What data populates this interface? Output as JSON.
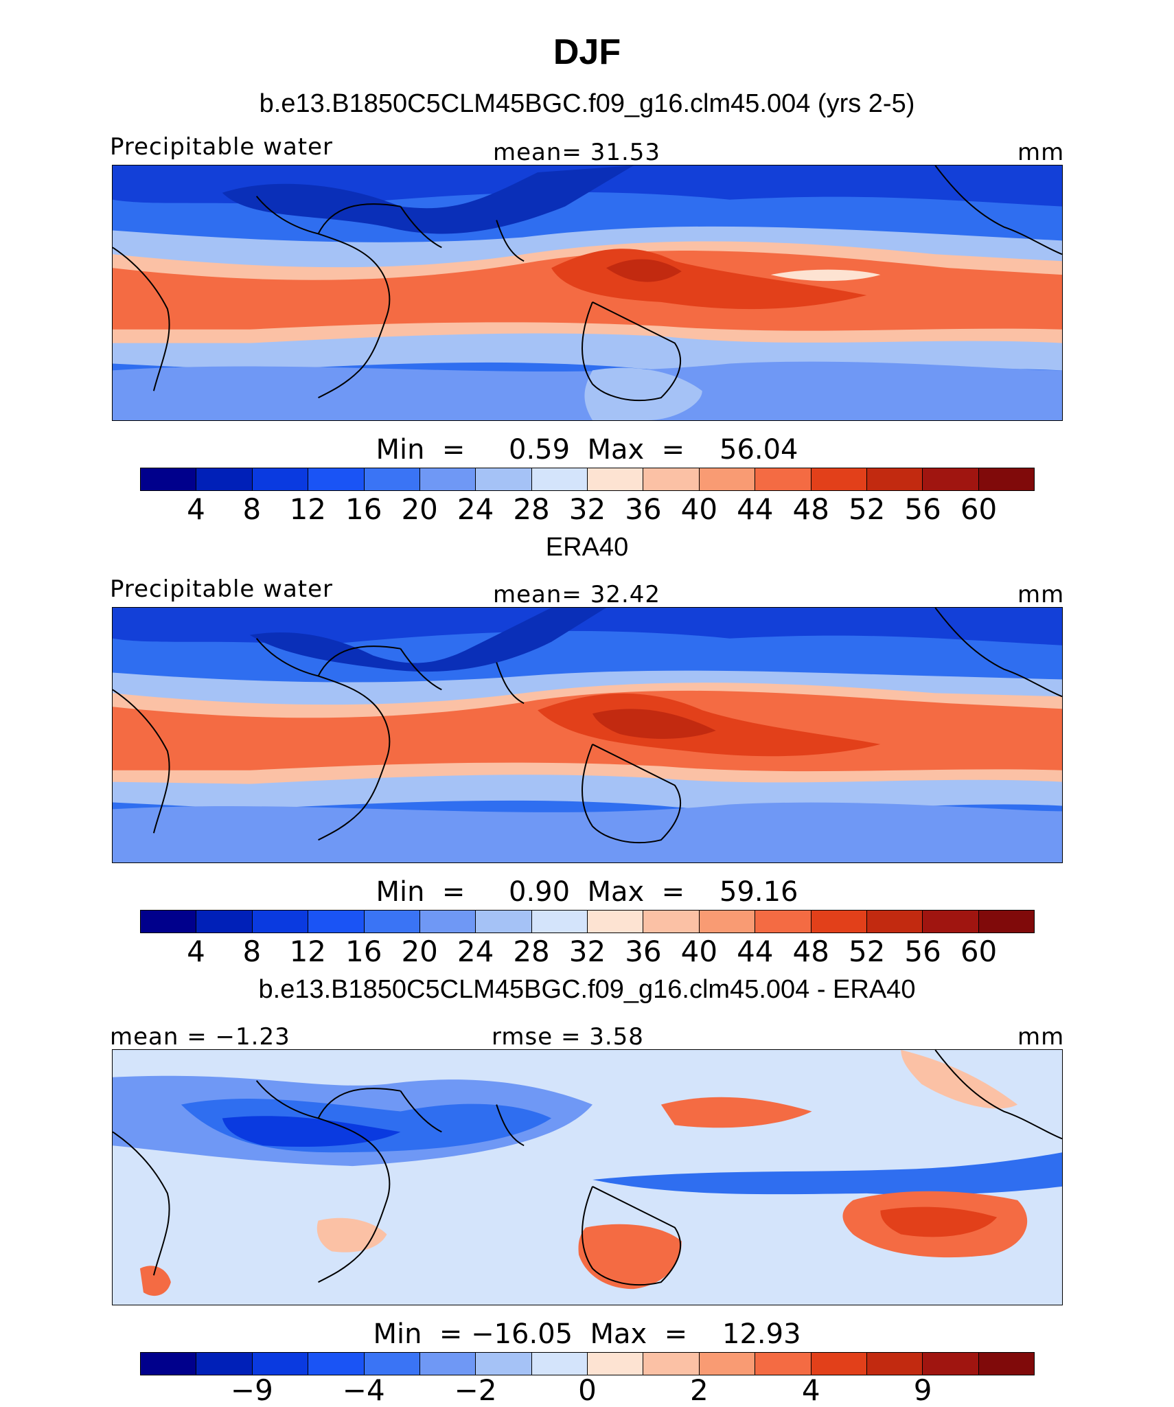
{
  "title": "DJF",
  "colors": [
    "#00008c",
    "#0020b8",
    "#0a3ae0",
    "#1a54f5",
    "#3a74f5",
    "#6f98f5",
    "#a5c2f6",
    "#d4e4fb",
    "#fde3d2",
    "#fbc1a5",
    "#f99b73",
    "#f46b43",
    "#e2401a",
    "#c22a10",
    "#a01510",
    "#800a0a"
  ],
  "panels": [
    {
      "subtitle": "b.e13.B1850C5CLM45BGC.f09_g16.clm45.004 (yrs 2-5)",
      "left_label": "Precipitable water",
      "center_label": "mean=   31.53",
      "unit": "mm",
      "minmax": "Min  =     0.59  Max  =    56.04",
      "ticks": [
        "4",
        "8",
        "12",
        "16",
        "20",
        "24",
        "28",
        "32",
        "36",
        "40",
        "44",
        "48",
        "52",
        "56",
        "60"
      ]
    },
    {
      "subtitle": "ERA40",
      "left_label": "Precipitable water",
      "center_label": "mean=   32.42",
      "unit": "mm",
      "minmax": "Min  =     0.90  Max  =    59.16",
      "ticks": [
        "4",
        "8",
        "12",
        "16",
        "20",
        "24",
        "28",
        "32",
        "36",
        "40",
        "44",
        "48",
        "52",
        "56",
        "60"
      ]
    },
    {
      "subtitle": "b.e13.B1850C5CLM45BGC.f09_g16.clm45.004 - ERA40",
      "left_label": "mean =   −1.23",
      "center_label": "rmse =     3.58",
      "unit": "mm",
      "minmax": "Min  = −16.05  Max  =    12.93",
      "ticks": [
        "−9",
        "−4",
        "−2",
        "0",
        "2",
        "4",
        "9"
      ]
    }
  ]
}
